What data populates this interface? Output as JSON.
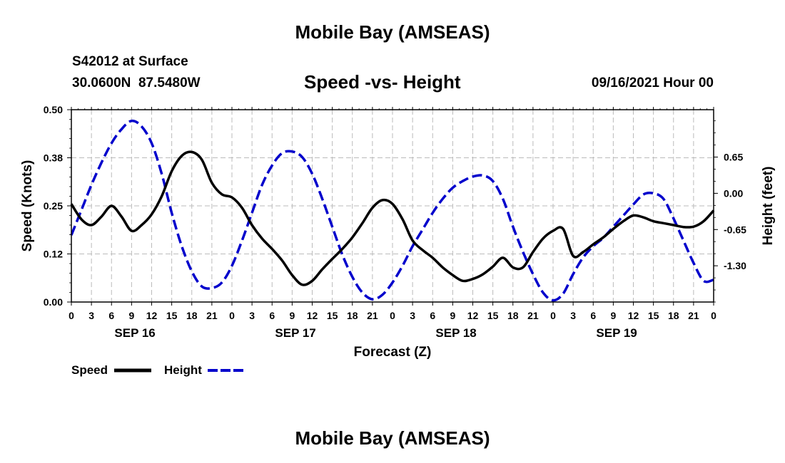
{
  "page": {
    "title_top": "Mobile Bay (AMSEAS)",
    "title_bottom": "Mobile Bay (AMSEAS)",
    "station": "S42012 at Surface",
    "coords": "30.0600N  87.5480W",
    "datetime": "09/16/2021 Hour 00"
  },
  "chart_data": {
    "type": "line",
    "title": "Speed -vs- Height",
    "xlabel": "Forecast (Z)",
    "ylabel": "Speed (Knots)",
    "y2label": "Height (feet)",
    "x_range_hours": [
      0,
      96
    ],
    "x_tick_labels": [
      "0",
      "3",
      "6",
      "9",
      "12",
      "15",
      "18",
      "21",
      "0",
      "3",
      "6",
      "9",
      "12",
      "15",
      "18",
      "21",
      "0",
      "3",
      "6",
      "9",
      "12",
      "15",
      "18",
      "21",
      "0",
      "3",
      "6",
      "9",
      "12",
      "15",
      "18",
      "21",
      "0"
    ],
    "day_labels": [
      {
        "label": "SEP 16",
        "hour": 9.5
      },
      {
        "label": "SEP 17",
        "hour": 33.5
      },
      {
        "label": "SEP 18",
        "hour": 57.5
      },
      {
        "label": "SEP 19",
        "hour": 81.5
      }
    ],
    "ylim": [
      0,
      0.5
    ],
    "yticks": [
      "0.00",
      "0.12",
      "0.25",
      "0.38",
      "0.50"
    ],
    "ytick_values": [
      0,
      0.125,
      0.25,
      0.375,
      0.5
    ],
    "y2lim": [
      -1.95,
      1.5
    ],
    "y2ticks": [
      "-1.30",
      "-0.65",
      "0.00",
      "0.65"
    ],
    "y2tick_values": [
      -1.3,
      -0.65,
      0,
      0.65
    ],
    "grid": true,
    "legend": "bottom-left",
    "series": [
      {
        "name": "Speed",
        "axis": "left",
        "color": "#000000",
        "style": "solid",
        "x": [
          0,
          1.5,
          3,
          4.5,
          6,
          7.5,
          9,
          10.5,
          12,
          13.5,
          15,
          16.5,
          18,
          19.5,
          21,
          22.5,
          24,
          25.5,
          27,
          28.5,
          30,
          31.5,
          33,
          34.5,
          36,
          37.5,
          39,
          40.5,
          42,
          43.5,
          45,
          46.5,
          48,
          49.5,
          51,
          52.5,
          54,
          55.5,
          57,
          58.5,
          60,
          61.5,
          63,
          64.5,
          66,
          67.5,
          69,
          70.5,
          72,
          73.5,
          75,
          76.5,
          78,
          79.5,
          81,
          82.5,
          84,
          85.5,
          87,
          88.5,
          90,
          91.5,
          93,
          94.5,
          96
        ],
        "values": [
          0.255,
          0.215,
          0.2,
          0.222,
          0.25,
          0.222,
          0.185,
          0.2,
          0.228,
          0.275,
          0.34,
          0.38,
          0.39,
          0.37,
          0.31,
          0.28,
          0.272,
          0.245,
          0.2,
          0.165,
          0.138,
          0.108,
          0.07,
          0.045,
          0.055,
          0.085,
          0.112,
          0.138,
          0.168,
          0.205,
          0.245,
          0.265,
          0.255,
          0.215,
          0.16,
          0.135,
          0.115,
          0.09,
          0.07,
          0.055,
          0.06,
          0.072,
          0.092,
          0.115,
          0.09,
          0.09,
          0.13,
          0.165,
          0.185,
          0.19,
          0.12,
          0.13,
          0.15,
          0.168,
          0.19,
          0.21,
          0.225,
          0.22,
          0.21,
          0.205,
          0.2,
          0.195,
          0.196,
          0.21,
          0.238
        ]
      },
      {
        "name": "Height",
        "axis": "right",
        "color": "#0000cc",
        "style": "dashed",
        "x": [
          0,
          1.5,
          3,
          4.5,
          6,
          7.5,
          9,
          10.5,
          12,
          13.5,
          15,
          16.5,
          18,
          19.5,
          21,
          22.5,
          24,
          25.5,
          27,
          28.5,
          30,
          31.5,
          33,
          34.5,
          36,
          37.5,
          39,
          40.5,
          42,
          43.5,
          45,
          46.5,
          48,
          49.5,
          51,
          52.5,
          54,
          55.5,
          57,
          58.5,
          60,
          61.5,
          63,
          64.5,
          66,
          67.5,
          69,
          70.5,
          72,
          73.5,
          75,
          76.5,
          78,
          79.5,
          81,
          82.5,
          84,
          85.5,
          87,
          88.5,
          90,
          91.5,
          93,
          94.5,
          96
        ],
        "values": [
          -0.75,
          -0.3,
          0.15,
          0.55,
          0.9,
          1.15,
          1.3,
          1.2,
          0.9,
          0.35,
          -0.35,
          -0.95,
          -1.4,
          -1.67,
          -1.7,
          -1.6,
          -1.3,
          -0.85,
          -0.35,
          0.15,
          0.5,
          0.72,
          0.75,
          0.65,
          0.35,
          -0.1,
          -0.6,
          -1.1,
          -1.5,
          -1.78,
          -1.9,
          -1.82,
          -1.6,
          -1.3,
          -0.95,
          -0.65,
          -0.35,
          -0.1,
          0.1,
          0.22,
          0.3,
          0.32,
          0.22,
          -0.1,
          -0.6,
          -1.05,
          -1.45,
          -1.78,
          -1.92,
          -1.8,
          -1.45,
          -1.15,
          -0.95,
          -0.8,
          -0.6,
          -0.4,
          -0.2,
          -0.02,
          0.0,
          -0.1,
          -0.45,
          -0.85,
          -1.25,
          -1.57,
          -1.55
        ]
      }
    ]
  }
}
